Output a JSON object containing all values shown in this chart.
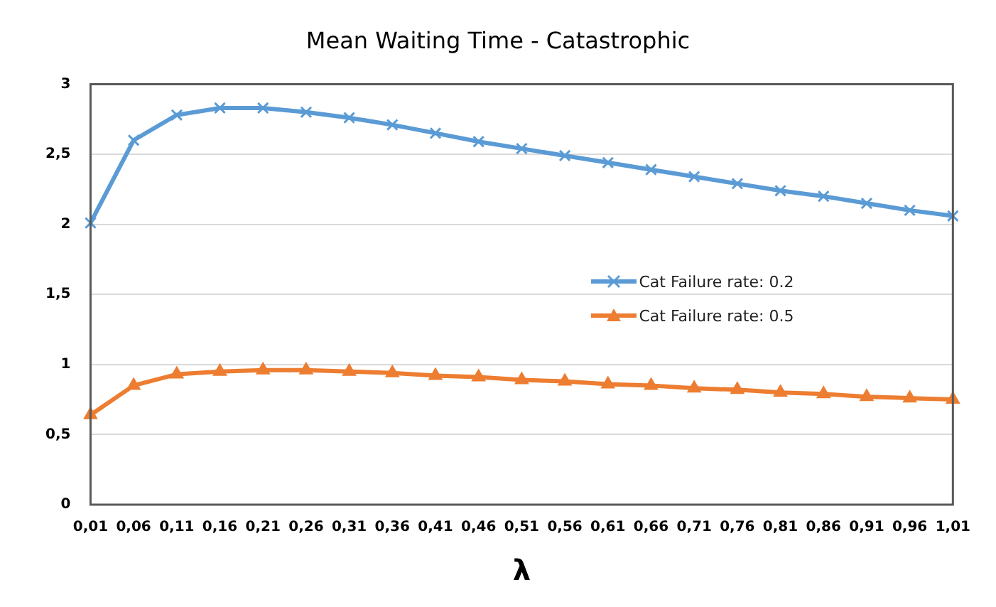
{
  "chart_data": {
    "type": "line",
    "title": "Mean Waiting Time - Catastrophic",
    "xlabel": "λ",
    "categories": [
      "0,01",
      "0,06",
      "0,11",
      "0,16",
      "0,21",
      "0,26",
      "0,31",
      "0,36",
      "0,41",
      "0,46",
      "0,51",
      "0,56",
      "0,61",
      "0,66",
      "0,71",
      "0,76",
      "0,81",
      "0,86",
      "0,91",
      "0,96",
      "1,01"
    ],
    "series": [
      {
        "name": "Cat Failure rate: 0.2",
        "color": "#5b9bd5",
        "marker": "cross",
        "values": [
          2.01,
          2.6,
          2.78,
          2.83,
          2.83,
          2.8,
          2.76,
          2.71,
          2.65,
          2.59,
          2.54,
          2.49,
          2.44,
          2.39,
          2.34,
          2.29,
          2.24,
          2.2,
          2.15,
          2.1,
          2.06
        ]
      },
      {
        "name": "Cat Failure rate: 0.5",
        "color": "#ed7d31",
        "marker": "triangle",
        "values": [
          0.64,
          0.85,
          0.93,
          0.95,
          0.96,
          0.96,
          0.95,
          0.94,
          0.92,
          0.91,
          0.89,
          0.88,
          0.86,
          0.85,
          0.83,
          0.82,
          0.8,
          0.79,
          0.77,
          0.76,
          0.75
        ]
      }
    ],
    "ylim": [
      0,
      3
    ],
    "yticks": [
      0,
      {
        "value": 0.5,
        "label": "0,5"
      },
      1,
      {
        "value": 1.5,
        "label": "1,5"
      },
      2,
      {
        "value": 2.5,
        "label": "2,5"
      },
      3
    ],
    "grid": "y",
    "legend": "right",
    "line_style": "solid"
  }
}
